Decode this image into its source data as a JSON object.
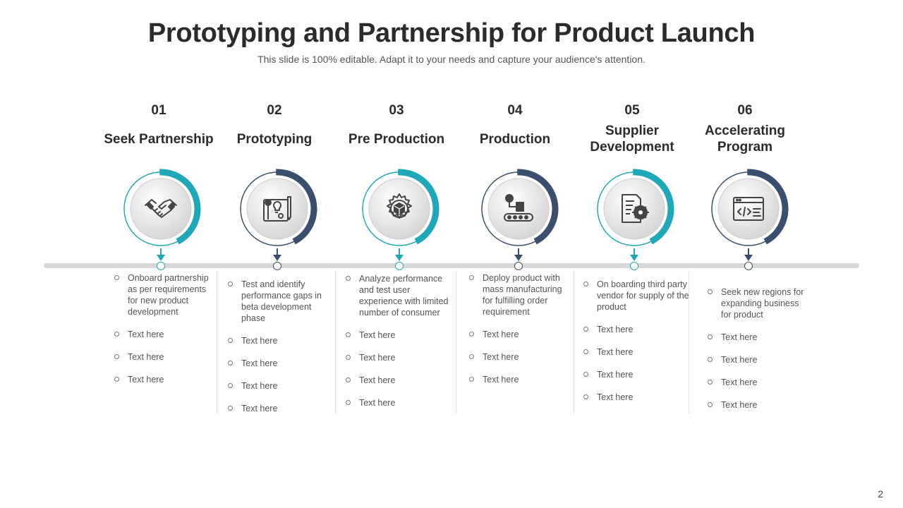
{
  "slide": {
    "title": "Prototyping and Partnership for Product Launch",
    "subtitle": "This slide is 100% editable. Adapt it to your needs and capture your audience's attention.",
    "page_number": "2"
  },
  "colors": {
    "teal": "#1fa8b8",
    "navy": "#3a4f6e",
    "timeline": "#d7d7d7"
  },
  "steps": [
    {
      "number": "01",
      "label": "Seek Partnership",
      "icon": "handshake-icon",
      "accent": "#1fa8b8",
      "bullets": [
        "Onboard partnership as per requirements for new product development",
        "Text here",
        "Text here",
        "Text here"
      ]
    },
    {
      "number": "02",
      "label": "Prototyping",
      "icon": "blueprint-icon",
      "accent": "#3a4f6e",
      "bullets": [
        "Test and identify performance gaps in beta development phase",
        "Text here",
        "Text here",
        "Text here",
        "Text here"
      ]
    },
    {
      "number": "03",
      "label": "Pre Production",
      "icon": "gear-cube-icon",
      "accent": "#1fa8b8",
      "bullets": [
        "Analyze performance and test user experience with limited number of consumer",
        "Text here",
        "Text here",
        "Text here",
        "Text here"
      ]
    },
    {
      "number": "04",
      "label": "Production",
      "icon": "conveyor-icon",
      "accent": "#3a4f6e",
      "bullets": [
        "Deploy product with mass manufacturing for fulfilling order requirement",
        "Text here",
        "Text here",
        "Text here"
      ]
    },
    {
      "number": "05",
      "label": "Supplier Development",
      "icon": "document-gear-icon",
      "accent": "#1fa8b8",
      "bullets": [
        "On boarding third party vendor for supply of the product",
        "Text here",
        "Text here",
        "Text here",
        "Text here"
      ]
    },
    {
      "number": "06",
      "label": "Accelerating Program",
      "icon": "code-window-icon",
      "accent": "#3a4f6e",
      "bullets": [
        "Seek new regions for expanding business for product",
        "Text here",
        "Text here",
        "Text here",
        "Text here"
      ]
    }
  ]
}
